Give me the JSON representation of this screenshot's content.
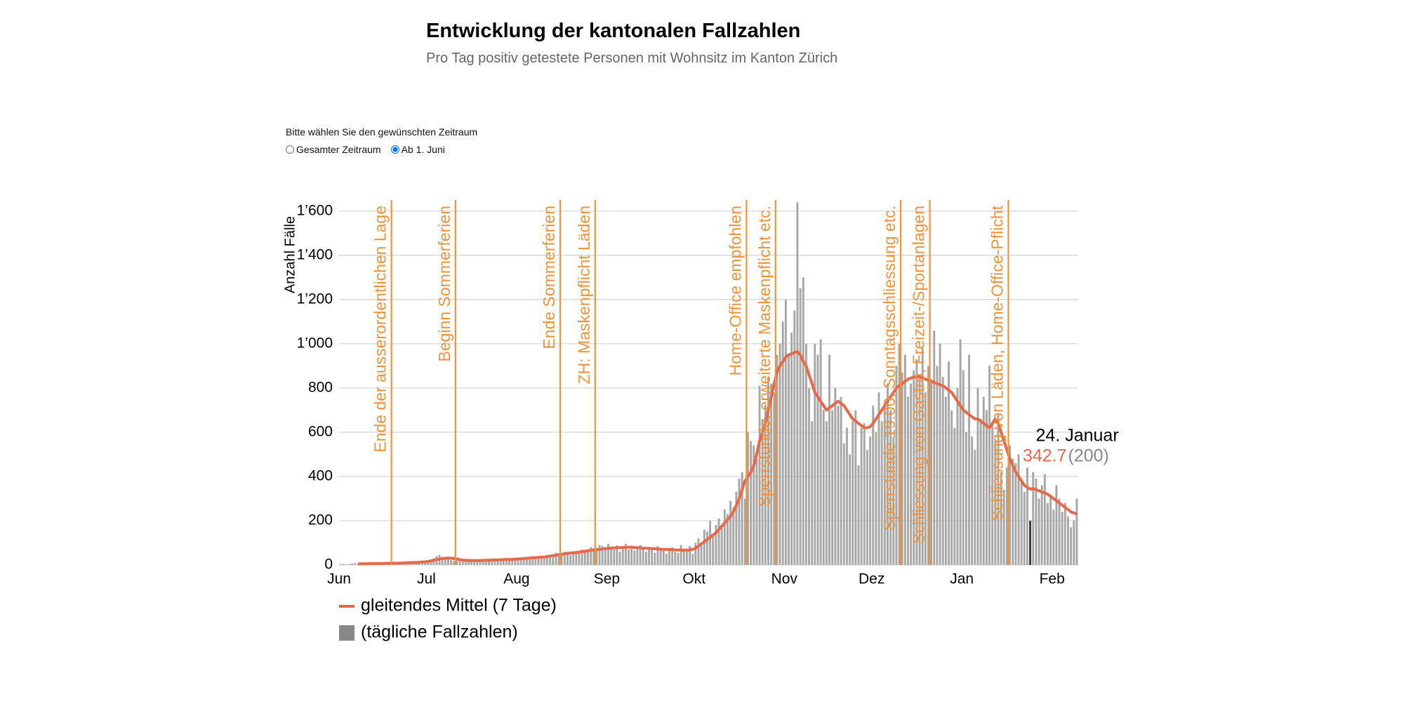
{
  "chart_data": {
    "type": "bar_line",
    "title": "Entwicklung der kantonalen Fallzahlen",
    "subtitle": "Pro Tag positiv getestete Personen mit Wohnsitz im Kanton Zürich",
    "y_label": "Anzahl Fälle",
    "xlim": [
      0,
      254
    ],
    "xticks": [
      {
        "value": 0,
        "label": "Jun"
      },
      {
        "value": 30,
        "label": "Jul"
      },
      {
        "value": 61,
        "label": "Aug"
      },
      {
        "value": 92,
        "label": "Sep"
      },
      {
        "value": 122,
        "label": "Okt"
      },
      {
        "value": 153,
        "label": "Nov"
      },
      {
        "value": 183,
        "label": "Dez"
      },
      {
        "value": 214,
        "label": "Jan"
      },
      {
        "value": 245,
        "label": "Feb"
      }
    ],
    "ylim": [
      0,
      1650
    ],
    "yticks": [
      0,
      200,
      400,
      600,
      800,
      {
        "value": 1000,
        "label": "1’000"
      },
      {
        "value": 1200,
        "label": "1’200"
      },
      {
        "value": 1400,
        "label": "1’400"
      },
      {
        "value": 1600,
        "label": "1’600"
      }
    ],
    "grid": true,
    "x": [
      0,
      1,
      2,
      3,
      4,
      5,
      6,
      7,
      8,
      9,
      10,
      11,
      12,
      13,
      14,
      15,
      16,
      17,
      18,
      19,
      20,
      21,
      22,
      23,
      24,
      25,
      26,
      27,
      28,
      29,
      30,
      31,
      32,
      33,
      34,
      35,
      36,
      37,
      38,
      39,
      40,
      41,
      42,
      43,
      44,
      45,
      46,
      47,
      48,
      49,
      50,
      51,
      52,
      53,
      54,
      55,
      56,
      57,
      58,
      59,
      60,
      61,
      62,
      63,
      64,
      65,
      66,
      67,
      68,
      69,
      70,
      71,
      72,
      73,
      74,
      75,
      76,
      77,
      78,
      79,
      80,
      81,
      82,
      83,
      84,
      85,
      86,
      87,
      88,
      89,
      90,
      91,
      92,
      93,
      94,
      95,
      96,
      97,
      98,
      99,
      100,
      101,
      102,
      103,
      104,
      105,
      106,
      107,
      108,
      109,
      110,
      111,
      112,
      113,
      114,
      115,
      116,
      117,
      118,
      119,
      120,
      121,
      122,
      123,
      124,
      125,
      126,
      127,
      128,
      129,
      130,
      131,
      132,
      133,
      134,
      135,
      136,
      137,
      138,
      139,
      140,
      141,
      142,
      143,
      144,
      145,
      146,
      147,
      148,
      149,
      150,
      151,
      152,
      153,
      154,
      155,
      156,
      157,
      158,
      159,
      160,
      161,
      162,
      163,
      164,
      165,
      166,
      167,
      168,
      169,
      170,
      171,
      172,
      173,
      174,
      175,
      176,
      177,
      178,
      179,
      180,
      181,
      182,
      183,
      184,
      185,
      186,
      187,
      188,
      189,
      190,
      191,
      192,
      193,
      194,
      195,
      196,
      197,
      198,
      199,
      200,
      201,
      202,
      203,
      204,
      205,
      206,
      207,
      208,
      209,
      210,
      211,
      212,
      213,
      214,
      215,
      216,
      217,
      218,
      219,
      220,
      221,
      222,
      223,
      224,
      225,
      226,
      227,
      228,
      229,
      230,
      231,
      232,
      233,
      234,
      235,
      236,
      237,
      238,
      239,
      240,
      241,
      242,
      243,
      244,
      245,
      246,
      247,
      248,
      249,
      250,
      251,
      252,
      253
    ],
    "series": [
      {
        "name": "gleitendes Mittel (7 Tage)",
        "color": "#e8684a",
        "type": "line",
        "values": [
          null,
          null,
          null,
          null,
          null,
          null,
          5,
          5,
          5,
          5,
          6,
          6,
          6,
          6,
          6,
          7,
          7,
          7,
          8,
          8,
          8,
          9,
          9,
          10,
          10,
          11,
          11,
          12,
          13,
          14,
          16,
          18,
          21,
          24,
          27,
          29,
          30,
          31,
          30,
          29,
          27,
          24,
          22,
          21,
          20,
          20,
          20,
          20,
          20,
          21,
          21,
          21,
          22,
          22,
          23,
          23,
          24,
          24,
          25,
          25,
          26,
          27,
          28,
          29,
          30,
          31,
          32,
          33,
          34,
          35,
          36,
          38,
          40,
          42,
          44,
          46,
          48,
          50,
          52,
          54,
          55,
          56,
          58,
          60,
          62,
          64,
          66,
          68,
          69,
          70,
          72,
          74,
          75,
          76,
          77,
          78,
          78,
          79,
          79,
          80,
          80,
          79,
          78,
          77,
          76,
          75,
          75,
          74,
          73,
          72,
          71,
          70,
          70,
          70,
          69,
          68,
          68,
          67,
          67,
          67,
          68,
          70,
          75,
          85,
          95,
          105,
          115,
          125,
          135,
          145,
          160,
          175,
          190,
          205,
          220,
          240,
          270,
          300,
          340,
          380,
          400,
          420,
          450,
          500,
          560,
          600,
          640,
          700,
          760,
          820,
          870,
          900,
          920,
          940,
          950,
          955,
          960,
          965,
          950,
          920,
          900,
          860,
          820,
          780,
          760,
          740,
          720,
          700,
          710,
          720,
          730,
          740,
          730,
          720,
          700,
          680,
          660,
          650,
          640,
          630,
          620,
          620,
          625,
          640,
          660,
          680,
          700,
          720,
          740,
          760,
          780,
          800,
          810,
          820,
          830,
          840,
          845,
          850,
          850,
          850,
          845,
          840,
          835,
          830,
          825,
          820,
          815,
          810,
          800,
          790,
          780,
          760,
          740,
          720,
          700,
          690,
          680,
          670,
          660,
          660,
          650,
          640,
          630,
          620,
          640,
          660,
          640,
          600,
          560,
          520,
          480,
          450,
          420,
          400,
          380,
          360,
          350,
          342.7,
          345,
          340,
          335,
          330,
          325,
          320,
          310,
          300,
          290,
          280,
          270,
          260,
          250,
          240,
          235,
          230
        ]
      },
      {
        "name": "(tägliche Fallzahlen)",
        "color": "#a6a6a6",
        "type": "bar",
        "values": [
          3,
          5,
          2,
          4,
          6,
          8,
          5,
          3,
          4,
          7,
          6,
          5,
          4,
          8,
          9,
          6,
          5,
          7,
          10,
          12,
          8,
          6,
          9,
          11,
          14,
          10,
          8,
          12,
          15,
          18,
          20,
          25,
          30,
          40,
          45,
          35,
          28,
          30,
          22,
          18,
          25,
          20,
          15,
          22,
          24,
          18,
          20,
          16,
          22,
          25,
          18,
          20,
          24,
          30,
          22,
          26,
          28,
          20,
          25,
          30,
          28,
          32,
          26,
          35,
          30,
          28,
          40,
          38,
          30,
          35,
          42,
          45,
          36,
          40,
          55,
          48,
          52,
          60,
          58,
          45,
          62,
          55,
          60,
          70,
          65,
          58,
          80,
          75,
          70,
          90,
          85,
          72,
          95,
          80,
          70,
          88,
          60,
          75,
          95,
          70,
          85,
          65,
          78,
          90,
          72,
          60,
          80,
          70,
          55,
          85,
          75,
          65,
          50,
          70,
          80,
          60,
          55,
          90,
          65,
          70,
          85,
          50,
          100,
          120,
          90,
          160,
          150,
          200,
          130,
          180,
          210,
          170,
          250,
          230,
          290,
          260,
          330,
          390,
          420,
          300,
          600,
          560,
          540,
          480,
          810,
          660,
          720,
          850,
          820,
          780,
          950,
          1000,
          1100,
          1200,
          950,
          1050,
          1150,
          1640,
          1250,
          1300,
          1000,
          800,
          650,
          1000,
          950,
          1020,
          700,
          650,
          950,
          700,
          800,
          720,
          760,
          550,
          620,
          500,
          650,
          700,
          450,
          620,
          640,
          520,
          580,
          720,
          600,
          780,
          650,
          740,
          820,
          700,
          580,
          900,
          1000,
          870,
          950,
          760,
          820,
          880,
          930,
          860,
          980,
          780,
          900,
          840,
          1060,
          900,
          1000,
          850,
          760,
          920,
          700,
          620,
          800,
          1020,
          880,
          600,
          950,
          580,
          520,
          800,
          660,
          760,
          700,
          900,
          640,
          560,
          680,
          420,
          340,
          440,
          540,
          480,
          460,
          500,
          380,
          330,
          440,
          200,
          420,
          390,
          300,
          360,
          410,
          280,
          310,
          250,
          360,
          300,
          240,
          280,
          220,
          170,
          200,
          300
        ]
      }
    ],
    "annotation_color": "#f0923a",
    "annotations": [
      {
        "x": 18,
        "label": "Ende der ausserordentlichen Lage"
      },
      {
        "x": 40,
        "label": "Beginn Sommerferien"
      },
      {
        "x": 76,
        "label": "Ende Sommerferien"
      },
      {
        "x": 88,
        "label": "ZH: Maskenpflicht Läden"
      },
      {
        "x": 140,
        "label": "Home-Office empfohlen"
      },
      {
        "x": 150,
        "label": "Sperrstunde, erweiterte Maskenpflicht etc."
      },
      {
        "x": 193,
        "label": "Sperrstunde 19.00, Sonntagsschliessung etc."
      },
      {
        "x": 203,
        "label": "Schliessung von Gastro, Freizeit-/Sportanlagen"
      },
      {
        "x": 230,
        "label": "Schliessung von Läden, Home-Office-Pflicht"
      }
    ],
    "tooltip": {
      "title": "24. Januar",
      "values": [
        342.7,
        200
      ],
      "value_labels": [
        "342.7",
        "(200)"
      ]
    }
  },
  "controls": {
    "prompt": "Bitte wählen Sie den gewünschten Zeitraum",
    "options": [
      "Gesamter Zeitraum",
      "Ab 1. Juni"
    ],
    "selected": 1
  }
}
